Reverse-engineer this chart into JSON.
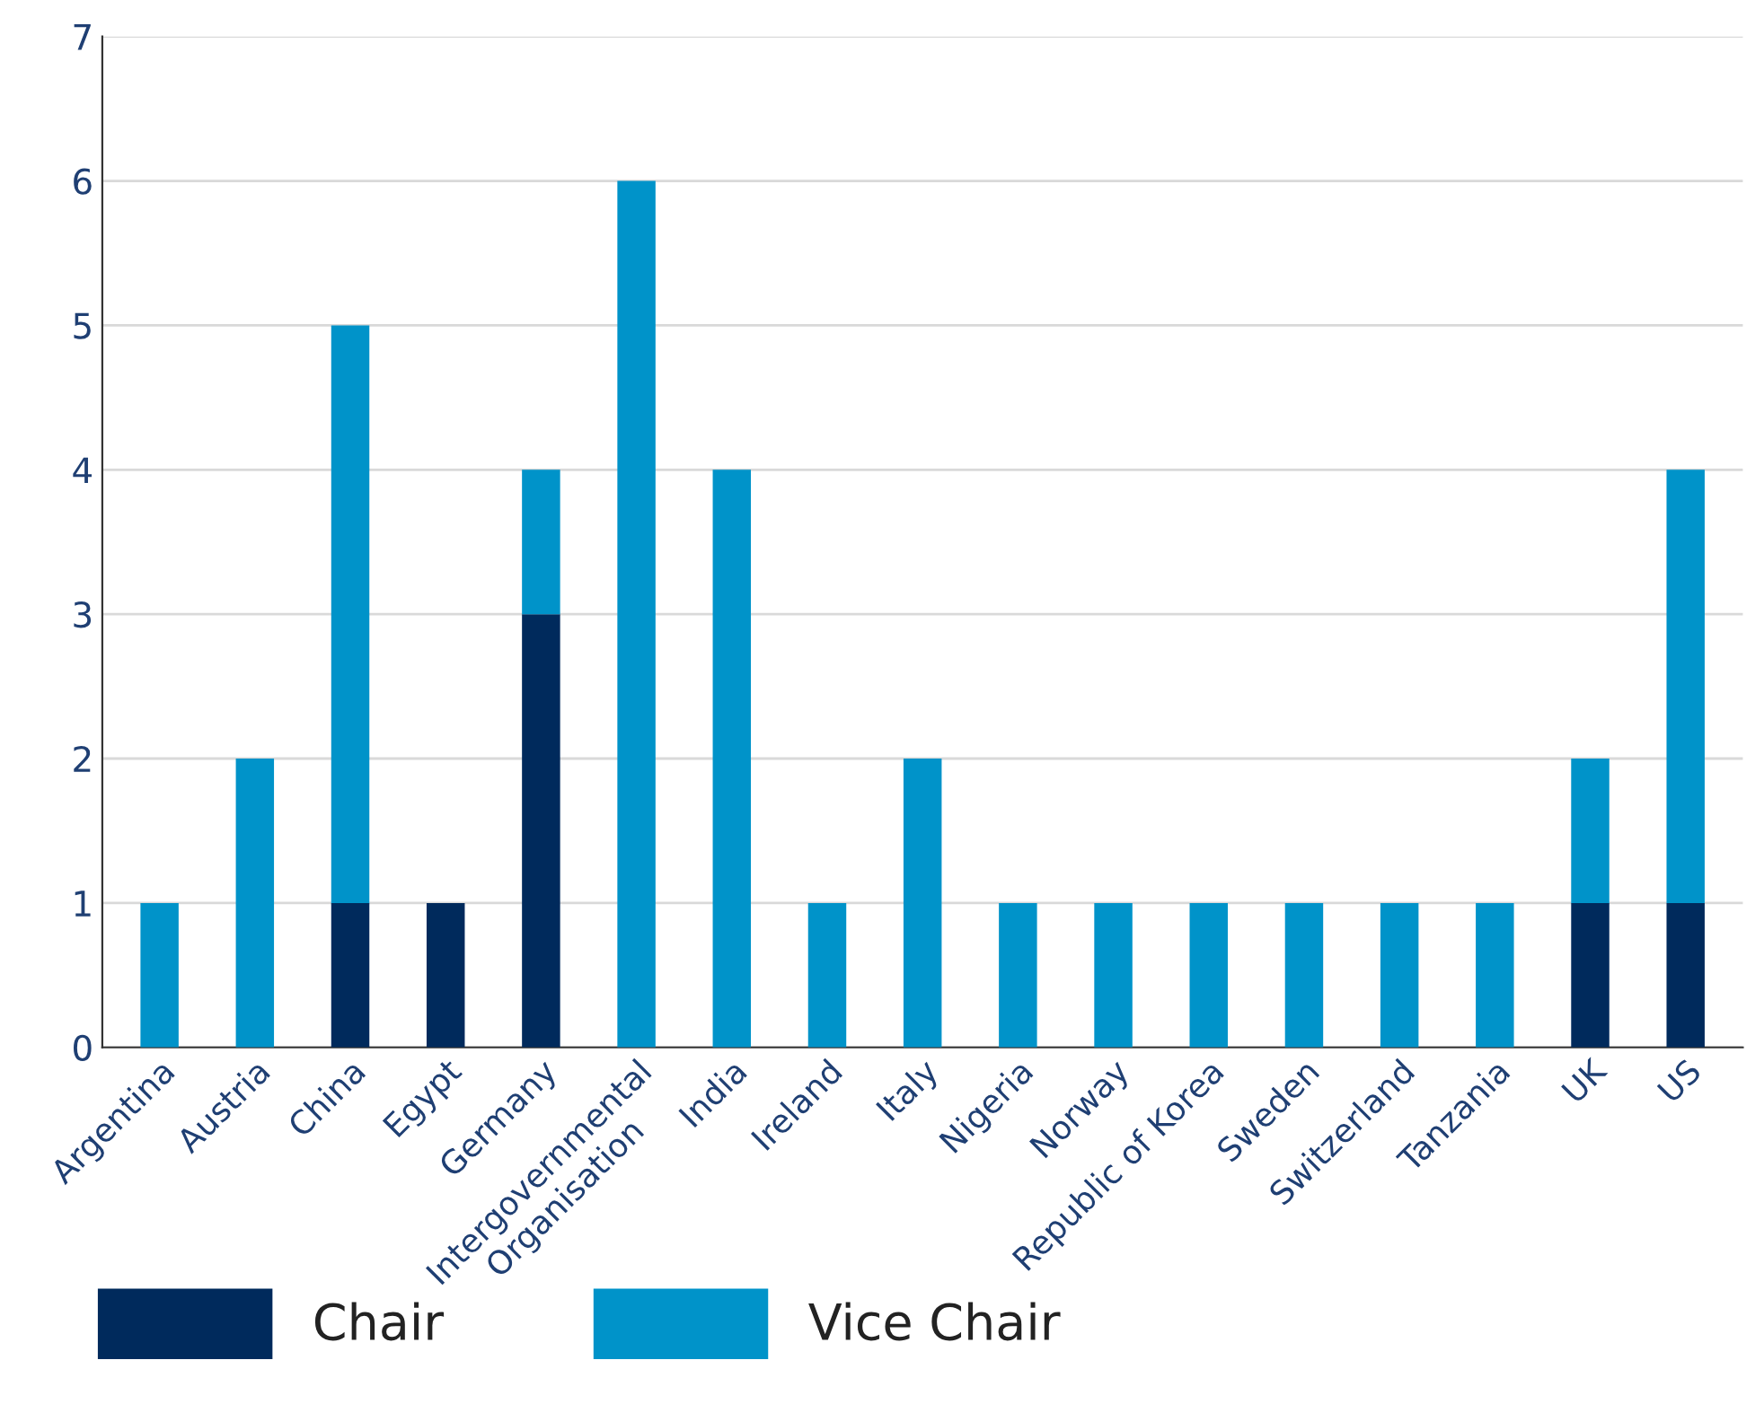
{
  "chart_data": {
    "type": "bar",
    "stacked": true,
    "categories": [
      "Argentina",
      "Austria",
      "China",
      "Egypt",
      "Germany",
      "Intergovernmental\nOrganisation",
      "India",
      "Ireland",
      "Italy",
      "Nigeria",
      "Norway",
      "Republic of Korea",
      "Sweden",
      "Switzerland",
      "Tanzania",
      "UK",
      "US"
    ],
    "series": [
      {
        "name": "Chair",
        "color": "#002a5c",
        "values": [
          0,
          0,
          1,
          1,
          3,
          0,
          0,
          0,
          0,
          0,
          0,
          0,
          0,
          0,
          0,
          1,
          1
        ]
      },
      {
        "name": "Vice Chair",
        "color": "#0093c9",
        "values": [
          1,
          2,
          4,
          0,
          1,
          6,
          4,
          1,
          2,
          1,
          1,
          1,
          1,
          1,
          1,
          1,
          3
        ]
      }
    ],
    "ylim": [
      0,
      7
    ],
    "yticks": [
      0,
      1,
      2,
      3,
      4,
      5,
      6,
      7
    ],
    "grid": "y",
    "legend": "bottom left"
  }
}
